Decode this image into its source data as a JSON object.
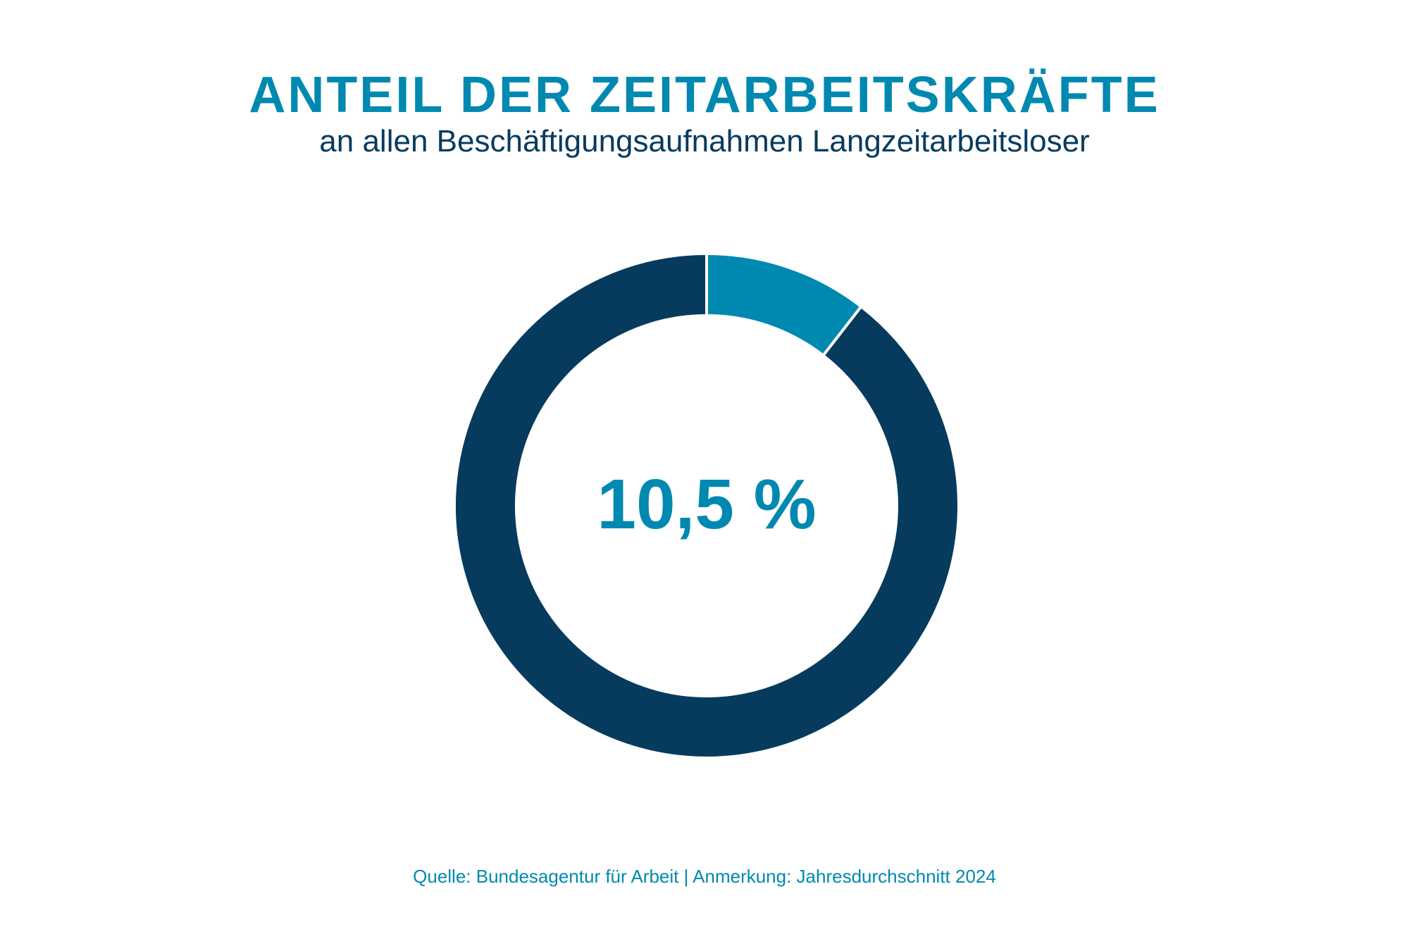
{
  "header": {
    "title": "ANTEIL DER ZEITARBEITSKRÄFTE",
    "subtitle": "an allen Beschäftigungsaufnahmen Langzeitarbeitsloser"
  },
  "chart_data": {
    "type": "pie",
    "style": "donut",
    "slices": [
      {
        "value": 10.5,
        "color": "#0089b0"
      },
      {
        "value": 89.5,
        "color": "#063b5e"
      }
    ],
    "center_label": "10,5 %"
  },
  "footer": {
    "source": "Quelle: Bundesagentur für Arbeit | Anmerkung: Jahresdurchschnitt 2024"
  },
  "colors": {
    "accent": "#0089b0",
    "dark": "#063b5e",
    "background": "#ffffff"
  }
}
